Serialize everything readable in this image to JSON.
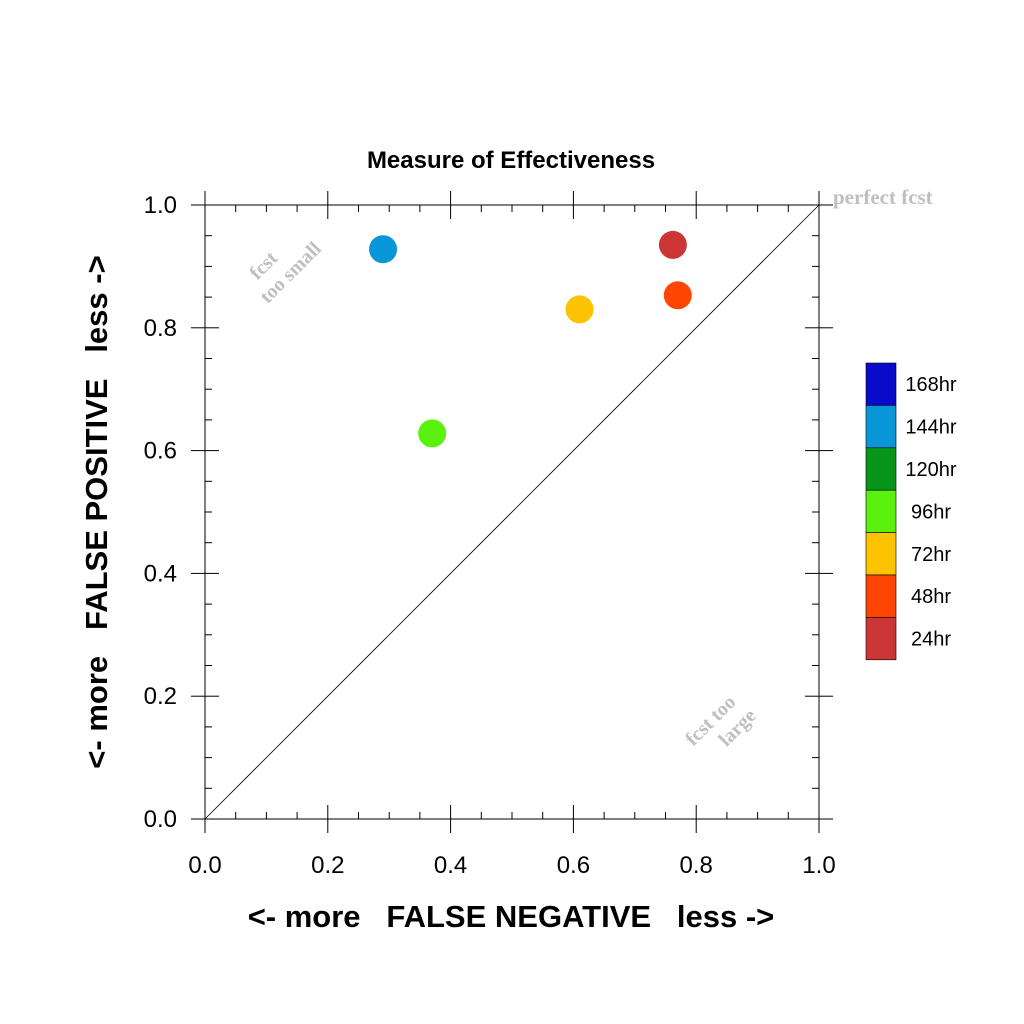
{
  "chart_data": {
    "type": "scatter",
    "title": "Measure of Effectiveness",
    "xlabel": "<- more   FALSE NEGATIVE   less ->",
    "ylabel": "<- more   FALSE POSITIVE   less ->",
    "xlim": [
      0.0,
      1.0
    ],
    "ylim": [
      0.0,
      1.0
    ],
    "x_ticks": [
      "0.0",
      "0.2",
      "0.4",
      "0.6",
      "0.8",
      "1.0"
    ],
    "y_ticks": [
      "0.0",
      "0.2",
      "0.4",
      "0.6",
      "0.8",
      "1.0"
    ],
    "grid": false,
    "diagonal_line": true,
    "annotations": {
      "perfect": "perfect fcst",
      "too_small_1": "fcst",
      "too_small_2": "too small",
      "too_large_1": "fcst too",
      "too_large_2": "large"
    },
    "legend_placement": "right",
    "legend": [
      {
        "label": "168hr",
        "color": "#0a0acb"
      },
      {
        "label": "144hr",
        "color": "#0996d9"
      },
      {
        "label": "120hr",
        "color": "#07961a"
      },
      {
        "label": "96hr",
        "color": "#5af10f"
      },
      {
        "label": "72hr",
        "color": "#fdc301"
      },
      {
        "label": "48hr",
        "color": "#fe4501"
      },
      {
        "label": "24hr",
        "color": "#cc3535"
      }
    ],
    "points": [
      {
        "x": 0.29,
        "y": 0.928,
        "color": "#0996d9"
      },
      {
        "x": 0.37,
        "y": 0.628,
        "color": "#5af10f"
      },
      {
        "x": 0.61,
        "y": 0.83,
        "color": "#fdc301"
      },
      {
        "x": 0.77,
        "y": 0.853,
        "color": "#fe4501"
      },
      {
        "x": 0.762,
        "y": 0.935,
        "color": "#cc3535"
      }
    ]
  }
}
